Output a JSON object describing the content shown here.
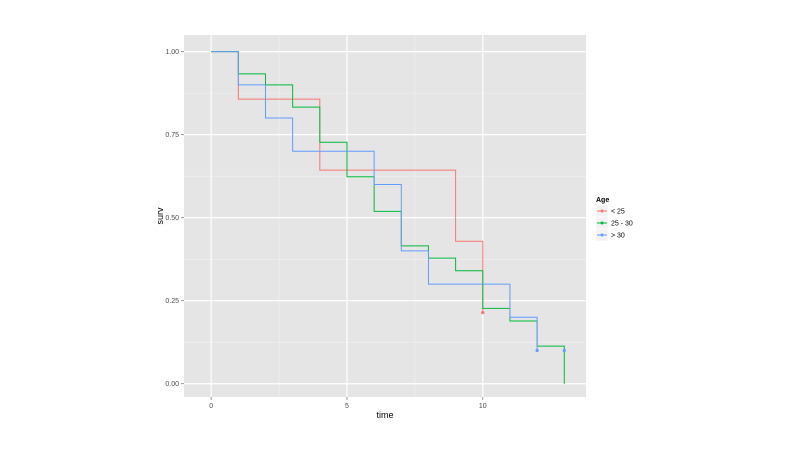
{
  "chart_data": {
    "type": "line",
    "step": true,
    "xlabel": "time",
    "ylabel": "surv",
    "xlim": [
      -1,
      13.8
    ],
    "ylim": [
      -0.04,
      1.05
    ],
    "x_ticks": [
      0,
      5,
      10
    ],
    "x_tick_labels": [
      "0",
      "5",
      "10"
    ],
    "y_ticks": [
      0,
      0.25,
      0.5,
      0.75,
      1
    ],
    "y_tick_labels": [
      "0.00",
      "0.25",
      "0.50",
      "0.75",
      "1.00"
    ],
    "grid": true,
    "legend": {
      "title": "Age",
      "position": "right"
    },
    "series": [
      {
        "name": "< 25",
        "color": "#F8766D",
        "time": [
          0,
          1,
          4,
          9,
          10
        ],
        "surv": [
          1.0,
          0.857,
          0.643,
          0.429,
          0.214
        ],
        "censored": [
          [
            10,
            0.214
          ]
        ]
      },
      {
        "name": "25 - 30",
        "color": "#00BA38",
        "time": [
          0,
          1,
          2,
          3,
          4,
          5,
          6,
          7,
          8,
          9,
          10,
          11,
          12,
          13
        ],
        "surv": [
          1.0,
          0.933,
          0.9,
          0.833,
          0.727,
          0.623,
          0.519,
          0.415,
          0.378,
          0.34,
          0.227,
          0.189,
          0.113,
          0.0
        ],
        "censored": []
      },
      {
        "name": "> 30",
        "color": "#619CFF",
        "time": [
          0,
          1,
          2,
          3,
          6,
          7,
          8,
          11,
          12
        ],
        "surv": [
          1.0,
          0.9,
          0.8,
          0.7,
          0.6,
          0.4,
          0.3,
          0.2,
          0.1
        ],
        "censored": [
          [
            12,
            0.1
          ],
          [
            13,
            0.1
          ]
        ]
      }
    ]
  }
}
